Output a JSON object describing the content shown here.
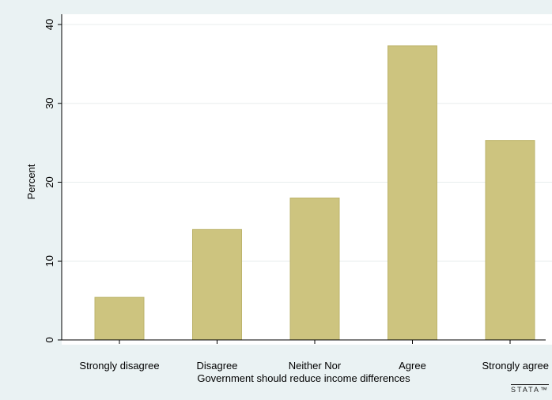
{
  "chart_data": {
    "type": "bar",
    "categories": [
      "Strongly disagree",
      "Disagree",
      "Neither Nor",
      "Agree",
      "Strongly agree"
    ],
    "values": [
      5.4,
      14.0,
      18.0,
      37.3,
      25.3
    ],
    "xlabel": "Government should reduce income differences",
    "ylabel": "Percent",
    "ylim": [
      0,
      40
    ],
    "yticks": [
      0,
      10,
      20,
      30,
      40
    ],
    "grid": true,
    "colors": {
      "bar": "#cdc47f",
      "bar_edge": "#bdb46c",
      "plot_bg": "#ffffff",
      "outer_bg": "#eaf2f3",
      "grid": "#e8eded"
    }
  },
  "watermark": "STATA™"
}
